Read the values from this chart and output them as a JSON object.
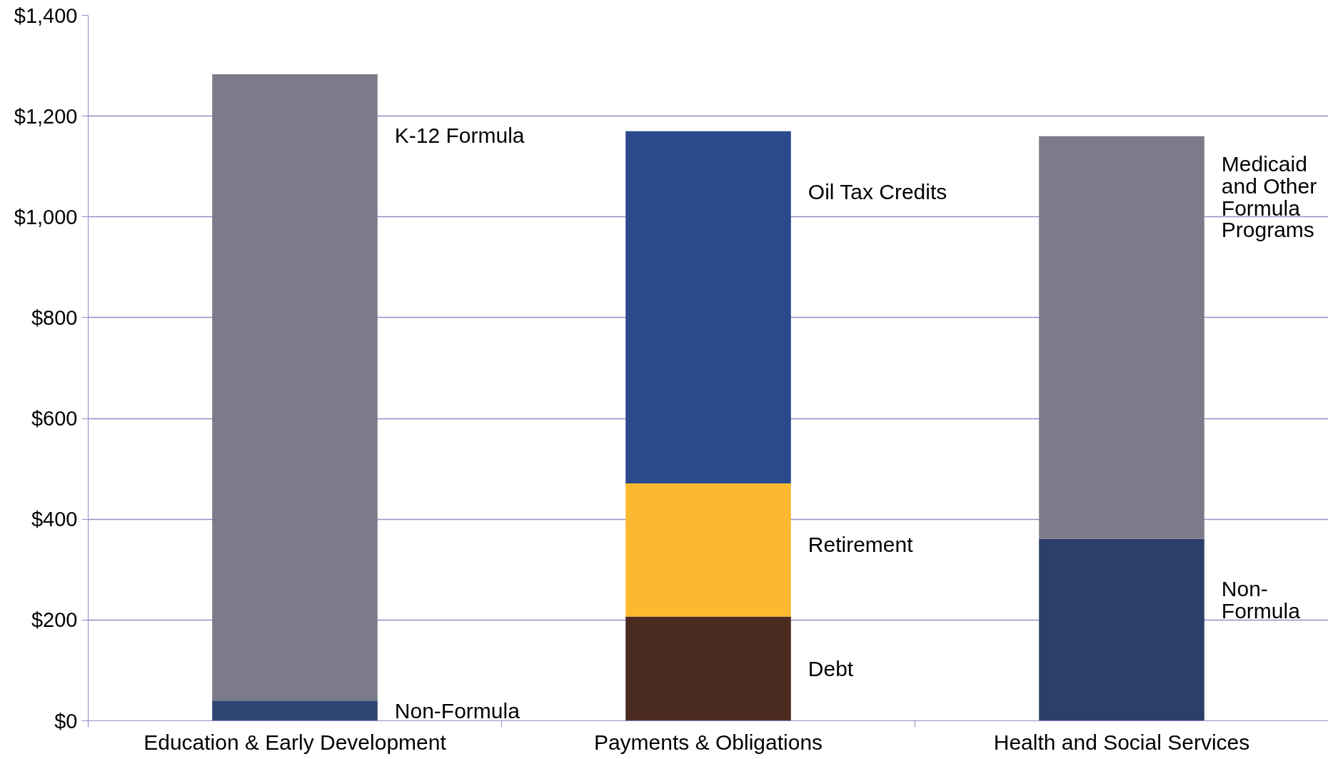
{
  "chart_data": {
    "type": "bar",
    "stacked": true,
    "categories": [
      "Education & Early Development",
      "Payments & Obligations",
      "Health and Social Services"
    ],
    "series": [
      {
        "name": "Non-Formula",
        "color": "#2f4574",
        "values": [
          40,
          null,
          null
        ]
      },
      {
        "name": "K-12 Formula",
        "color": "#7b7b8a",
        "values": [
          1243,
          null,
          null
        ]
      },
      {
        "name": "Debt",
        "color": "#4b2a20",
        "values": [
          null,
          207,
          null
        ]
      },
      {
        "name": "Retirement",
        "color": "#fbb930",
        "values": [
          null,
          264,
          null
        ]
      },
      {
        "name": "Oil Tax Credits",
        "color": "#2b4a8c",
        "values": [
          null,
          699,
          null
        ]
      },
      {
        "name": "Non-Formula",
        "color": "#2c3f68",
        "values": [
          null,
          null,
          361
        ]
      },
      {
        "name": "Medicaid and Other Formula Programs",
        "color": "#7b7b8a",
        "values": [
          null,
          null,
          799
        ]
      }
    ],
    "ylim": [
      0,
      1400
    ],
    "yticks": [
      {
        "value": 0,
        "label": "$0"
      },
      {
        "value": 200,
        "label": "$200"
      },
      {
        "value": 400,
        "label": "$400"
      },
      {
        "value": 600,
        "label": "$600"
      },
      {
        "value": 800,
        "label": "$800"
      },
      {
        "value": 1000,
        "label": "$1,000"
      },
      {
        "value": 1200,
        "label": "$1,200"
      },
      {
        "value": 1400,
        "label": "$1,400"
      }
    ],
    "grid": "y"
  }
}
